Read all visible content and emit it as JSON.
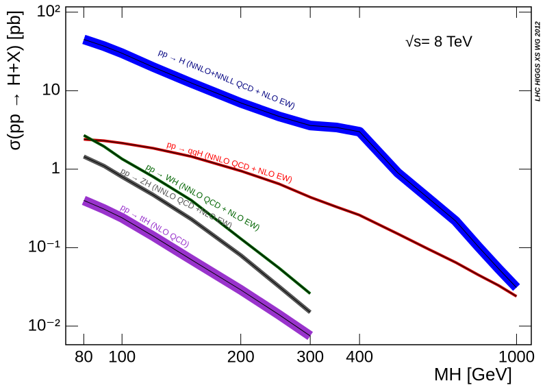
{
  "chart_data": {
    "type": "line",
    "y_label": "σ(pp → H+X) [pb]",
    "x_label": "MH [GeV]",
    "annotation": "√s= 8 TeV",
    "watermark": "LHC HIGGS XS WG 2012",
    "xlog": true,
    "ylog": true,
    "xlim": [
      72,
      1090
    ],
    "ylim": [
      0.0058,
      117
    ],
    "xticks": [
      80,
      100,
      200,
      300,
      400,
      1000
    ],
    "yticks": [
      {
        "value": 100,
        "label": "10²"
      },
      10,
      1,
      {
        "value": 0.1,
        "label": "10⁻¹"
      },
      {
        "value": 0.01,
        "label": "10⁻²"
      }
    ],
    "line_color": "#000000",
    "x": [
      80,
      90,
      100,
      120,
      150,
      200,
      250,
      300,
      350,
      400,
      500,
      600,
      700,
      800,
      900,
      1000
    ],
    "series": [
      {
        "name": "pp → H (NNLO+NNLL QCD + NLO EW)",
        "color": "#0000ff",
        "label_color": "#000080",
        "values": [
          45,
          37,
          30,
          20,
          12.5,
          7,
          4.7,
          3.6,
          3.4,
          3.0,
          0.9,
          0.42,
          0.22,
          0.103,
          0.054,
          0.031
        ]
      },
      {
        "name": "pp → qqH (NNLO QCD + NLO EW)",
        "color": "#cc0000",
        "label_color": "#ff0000",
        "values": [
          2.4,
          2.3,
          2.15,
          1.85,
          1.45,
          0.95,
          0.65,
          0.44,
          0.33,
          0.26,
          0.15,
          0.095,
          0.065,
          0.045,
          0.033,
          0.024
        ]
      },
      {
        "name": "pp → WH (NNLO QCD + NLO EW)",
        "color": "#006400",
        "label_color": "#006400",
        "values": [
          2.7,
          1.95,
          1.35,
          0.8,
          0.4,
          0.13,
          0.055,
          0.026,
          null,
          null,
          null,
          null,
          null,
          null,
          null,
          null
        ]
      },
      {
        "name": "pp → ZH (NNLO QCD +NLO EW)",
        "color": "#555555",
        "label_color": "#555555",
        "values": [
          1.45,
          1.1,
          0.8,
          0.47,
          0.23,
          0.08,
          0.032,
          0.015,
          null,
          null,
          null,
          null,
          null,
          null,
          null,
          null
        ]
      },
      {
        "name": "pp → ttH (NLO QCD)",
        "color": "#9933cc",
        "label_color": "#9933cc",
        "values": [
          0.4,
          0.31,
          0.24,
          0.14,
          0.07,
          0.029,
          0.014,
          0.0075,
          null,
          null,
          null,
          null,
          null,
          null,
          null,
          null
        ]
      }
    ]
  }
}
